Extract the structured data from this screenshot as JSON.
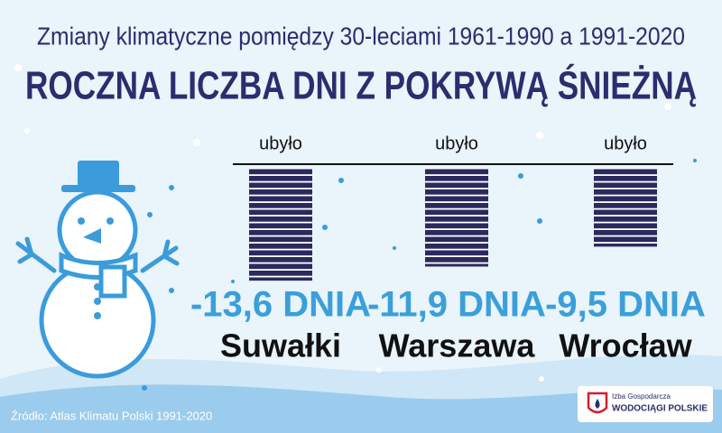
{
  "chart_data": {
    "type": "bar",
    "subtitle": "Zmiany klimatyczne pomiędzy 30-leciami 1961-1990 a 1991-2020",
    "title": "ROCZNA LICZBA DNI Z POKRYWĄ ŚNIEŻNĄ",
    "bar_caption": "ubyło",
    "categories": [
      "Suwałki",
      "Warszawa",
      "Wrocław"
    ],
    "values": [
      -13.6,
      -11.9,
      -9.5
    ],
    "value_labels": [
      "-13,6 DNIA",
      "-11,9 DNIA",
      "-9,5 DNIA"
    ],
    "color": "#2b2a5e",
    "label_color": "#3a9fdb",
    "source": "Źródło: Atlas Klimatu Polski 1991-2020",
    "logo": {
      "line1": "Izba Gospodarcza",
      "line2": "WODOCIĄGI POLSKIE"
    }
  }
}
